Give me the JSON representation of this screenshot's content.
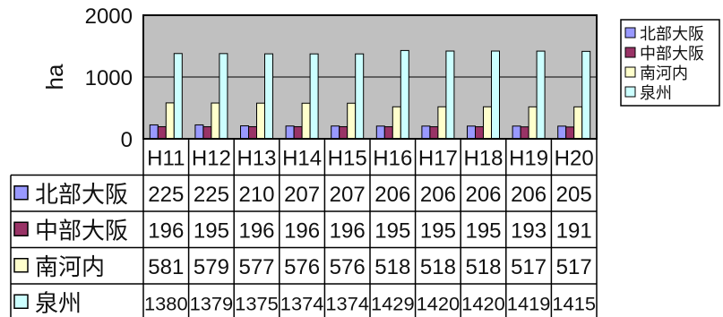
{
  "chart_data": {
    "type": "bar",
    "title": "",
    "xlabel": "",
    "ylabel": "ha",
    "ylim": [
      0,
      2000
    ],
    "yticks": [
      0,
      1000,
      2000
    ],
    "grid": true,
    "legend_position": "right",
    "plot_background": "#c0c0c0",
    "categories": [
      "H11",
      "H12",
      "H13",
      "H14",
      "H15",
      "H16",
      "H17",
      "H18",
      "H19",
      "H20"
    ],
    "series": [
      {
        "name": "北部大阪",
        "color": "#9999ff",
        "values": [
          225,
          225,
          210,
          207,
          207,
          206,
          206,
          206,
          206,
          205
        ]
      },
      {
        "name": "中部大阪",
        "color": "#993366",
        "values": [
          196,
          195,
          196,
          196,
          196,
          195,
          195,
          195,
          193,
          191
        ]
      },
      {
        "name": "南河内",
        "color": "#ffffcc",
        "values": [
          581,
          579,
          577,
          576,
          576,
          518,
          518,
          518,
          517,
          517
        ]
      },
      {
        "name": "泉州",
        "color": "#ccffff",
        "values": [
          1380,
          1379,
          1375,
          1374,
          1374,
          1429,
          1420,
          1420,
          1419,
          1415
        ]
      }
    ],
    "data_table": true
  }
}
